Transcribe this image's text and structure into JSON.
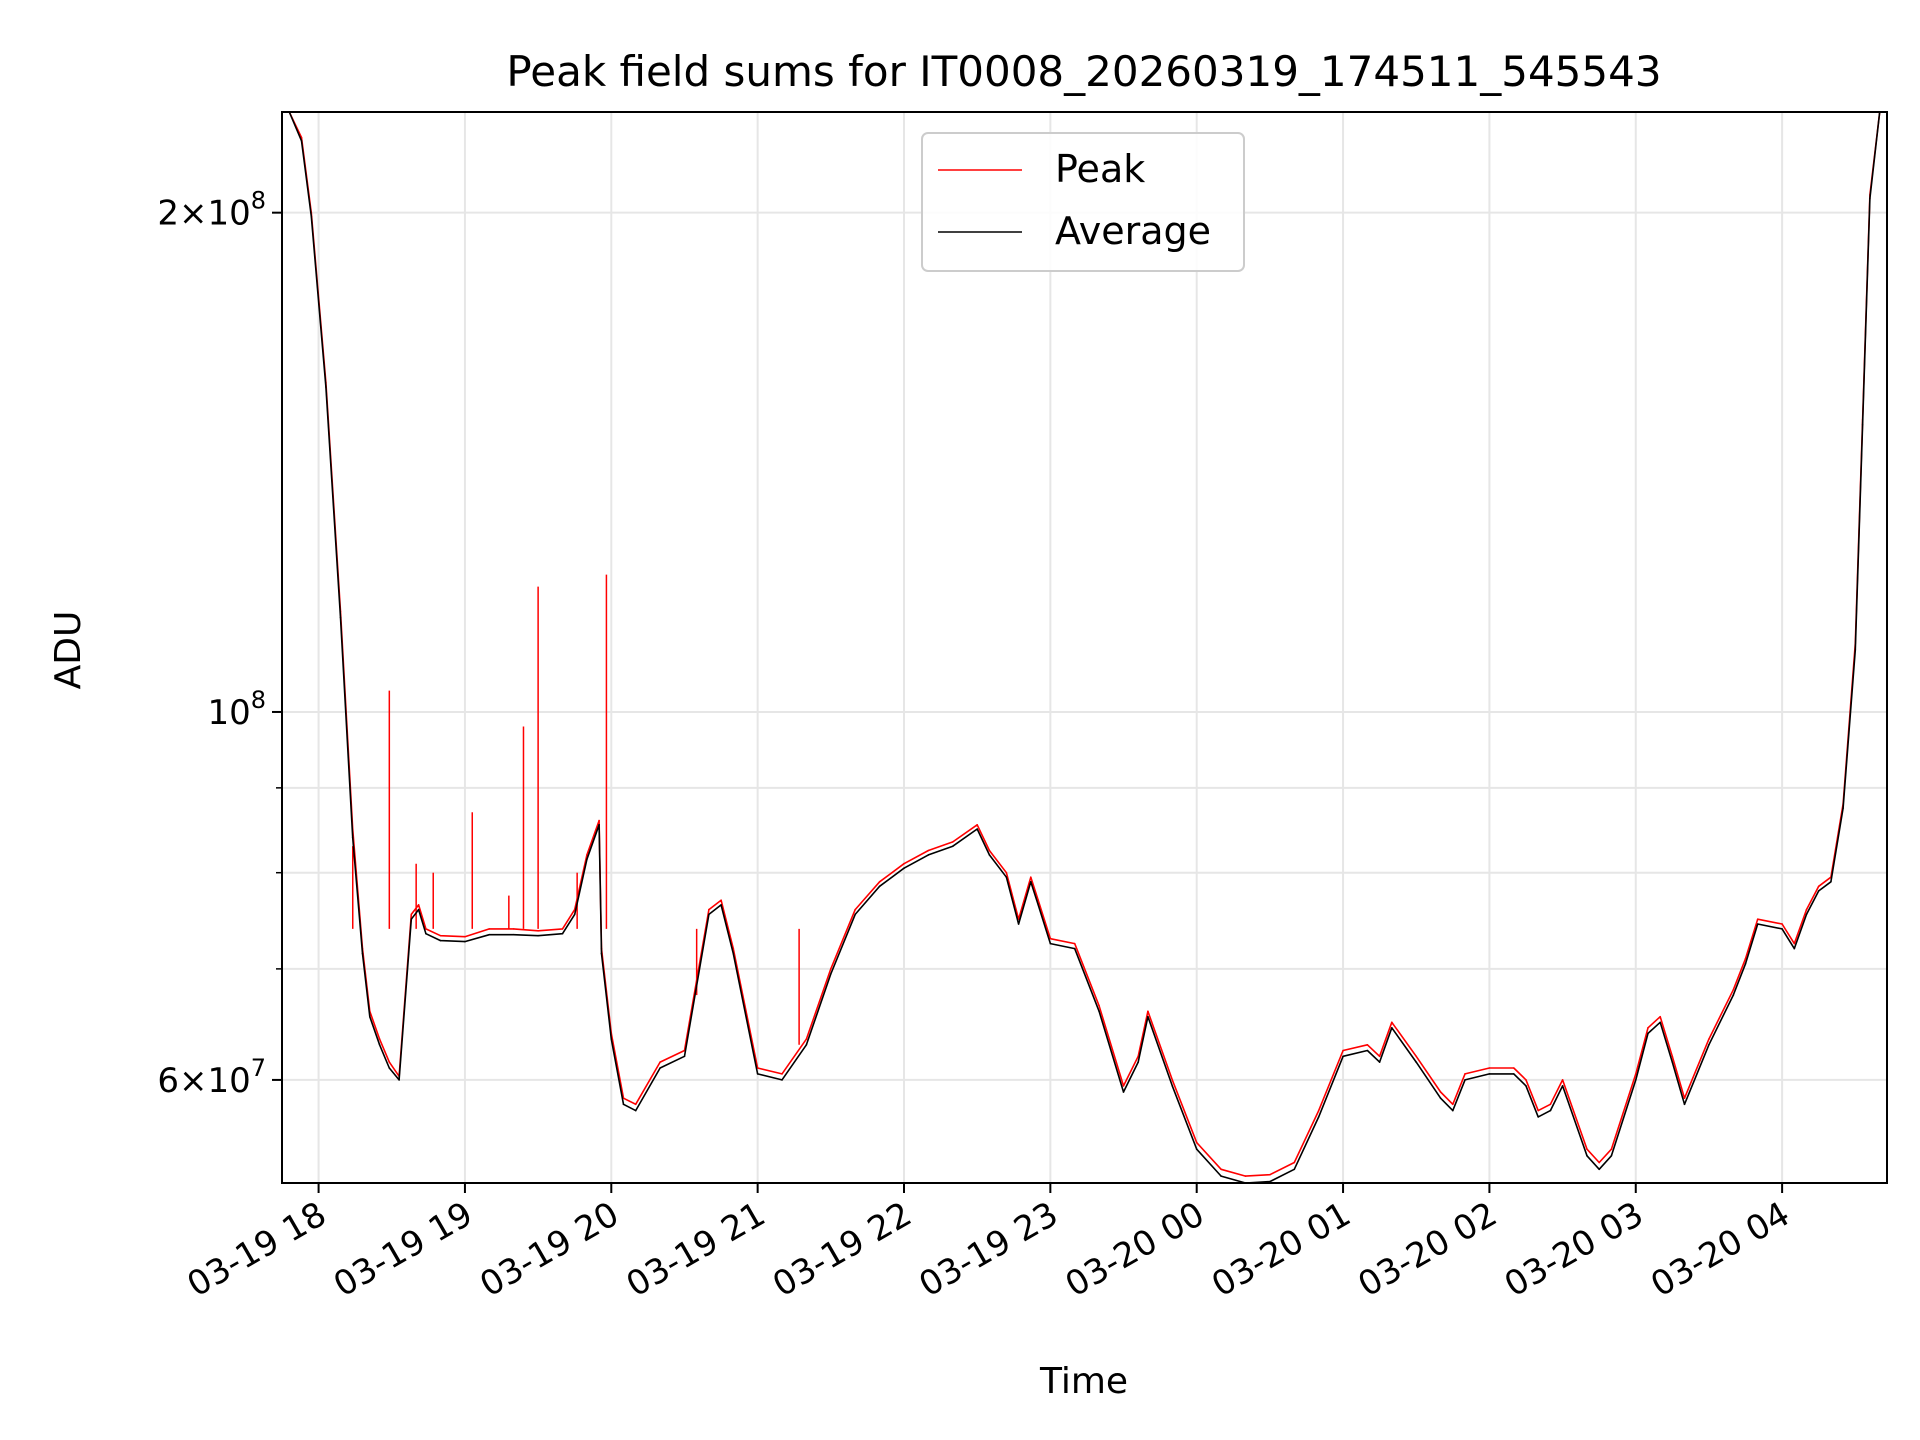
{
  "chart_data": {
    "type": "line",
    "title": "Peak field sums for IT0008_20260319_174511_545543",
    "xlabel": "Time",
    "ylabel": "ADU",
    "yscale": "log",
    "grid": true,
    "legend_position": "top-center",
    "xlim": [
      "03-19 17:45",
      "03-20 04:43"
    ],
    "ylim": [
      52000000,
      230000000
    ],
    "x_ticks": [
      "03-19 18",
      "03-19 19",
      "03-19 20",
      "03-19 21",
      "03-19 22",
      "03-19 23",
      "03-20 00",
      "03-20 01",
      "03-20 02",
      "03-20 03",
      "03-20 04"
    ],
    "y_ticks": [
      {
        "value": 200000000,
        "mant": "2",
        "exp": "8"
      },
      {
        "value": 100000000,
        "mant": "",
        "exp": "8"
      },
      {
        "value": 60000000,
        "mant": "6",
        "exp": "7"
      }
    ],
    "y_minor_ticks": [
      70000000,
      80000000,
      90000000
    ],
    "series": [
      {
        "name": "Peak",
        "color": "#ff0000",
        "x": [
          "03-19 17:45",
          "03-19 17:48",
          "03-19 17:53",
          "03-19 17:57",
          "03-19 18:03",
          "03-19 18:09",
          "03-19 18:14",
          "03-19 18:18",
          "03-19 18:21",
          "03-19 18:25",
          "03-19 18:29",
          "03-19 18:33",
          "03-19 18:38",
          "03-19 18:41",
          "03-19 18:44",
          "03-19 18:50",
          "03-19 19:00",
          "03-19 19:10",
          "03-19 19:20",
          "03-19 19:30",
          "03-19 19:40",
          "03-19 19:45",
          "03-19 19:50",
          "03-19 19:55",
          "03-19 19:56",
          "03-19 20:00",
          "03-19 20:05",
          "03-19 20:10",
          "03-19 20:20",
          "03-19 20:30",
          "03-19 20:40",
          "03-19 20:45",
          "03-19 20:50",
          "03-19 21:00",
          "03-19 21:10",
          "03-19 21:20",
          "03-19 21:30",
          "03-19 21:40",
          "03-19 21:50",
          "03-19 22:00",
          "03-19 22:10",
          "03-19 22:20",
          "03-19 22:30",
          "03-19 22:35",
          "03-19 22:42",
          "03-19 22:47",
          "03-19 22:52",
          "03-19 22:55",
          "03-19 23:00",
          "03-19 23:10",
          "03-19 23:20",
          "03-19 23:30",
          "03-19 23:36",
          "03-19 23:40",
          "03-19 23:50",
          "03-20 00:00",
          "03-20 00:10",
          "03-20 00:20",
          "03-20 00:30",
          "03-20 00:40",
          "03-20 00:50",
          "03-20 01:00",
          "03-20 01:10",
          "03-20 01:15",
          "03-20 01:20",
          "03-20 01:30",
          "03-20 01:40",
          "03-20 01:45",
          "03-20 01:50",
          "03-20 02:00",
          "03-20 02:10",
          "03-20 02:15",
          "03-20 02:20",
          "03-20 02:25",
          "03-20 02:30",
          "03-20 02:40",
          "03-20 02:45",
          "03-20 02:50",
          "03-20 03:00",
          "03-20 03:05",
          "03-20 03:10",
          "03-20 03:15",
          "03-20 03:20",
          "03-20 03:30",
          "03-20 03:40",
          "03-20 03:45",
          "03-20 03:50",
          "03-20 04:00",
          "03-20 04:05",
          "03-20 04:10",
          "03-20 04:15",
          "03-20 04:20",
          "03-20 04:25",
          "03-20 04:30",
          "03-20 04:33",
          "03-20 04:36",
          "03-20 04:40"
        ],
        "y": [
          230000000,
          230000000,
          222000000,
          200000000,
          158000000,
          115000000,
          85000000,
          72000000,
          66000000,
          63500000,
          61500000,
          60300000,
          75500000,
          76500000,
          74000000,
          73300000,
          73200000,
          74000000,
          74000000,
          73800000,
          74000000,
          76000000,
          82000000,
          86000000,
          72000000,
          64000000,
          58500000,
          58000000,
          61500000,
          62500000,
          76000000,
          77000000,
          72000000,
          61000000,
          60500000,
          63500000,
          70000000,
          76000000,
          79000000,
          81000000,
          82500000,
          83500000,
          85500000,
          82500000,
          80000000,
          75000000,
          79500000,
          77000000,
          73000000,
          72500000,
          66500000,
          59500000,
          62000000,
          66000000,
          60000000,
          55000000,
          53000000,
          52500000,
          52600000,
          53500000,
          57500000,
          62500000,
          63000000,
          62000000,
          65000000,
          62000000,
          59000000,
          58000000,
          60500000,
          61000000,
          61000000,
          60000000,
          57500000,
          58000000,
          60000000,
          54500000,
          53500000,
          54500000,
          60500000,
          64500000,
          65500000,
          62000000,
          58500000,
          63500000,
          68000000,
          71000000,
          75000000,
          74500000,
          72500000,
          76000000,
          78500000,
          79500000,
          88000000,
          110000000,
          150000000,
          205000000,
          230000000
        ]
      },
      {
        "name": "Average",
        "color": "#000000",
        "x": [
          "03-19 17:45",
          "03-19 17:48",
          "03-19 17:53",
          "03-19 17:57",
          "03-19 18:03",
          "03-19 18:09",
          "03-19 18:14",
          "03-19 18:18",
          "03-19 18:21",
          "03-19 18:25",
          "03-19 18:29",
          "03-19 18:33",
          "03-19 18:38",
          "03-19 18:41",
          "03-19 18:44",
          "03-19 18:50",
          "03-19 19:00",
          "03-19 19:10",
          "03-19 19:20",
          "03-19 19:30",
          "03-19 19:40",
          "03-19 19:45",
          "03-19 19:50",
          "03-19 19:55",
          "03-19 19:56",
          "03-19 20:00",
          "03-19 20:05",
          "03-19 20:10",
          "03-19 20:20",
          "03-19 20:30",
          "03-19 20:40",
          "03-19 20:45",
          "03-19 20:50",
          "03-19 21:00",
          "03-19 21:10",
          "03-19 21:20",
          "03-19 21:30",
          "03-19 21:40",
          "03-19 21:50",
          "03-19 22:00",
          "03-19 22:10",
          "03-19 22:20",
          "03-19 22:30",
          "03-19 22:35",
          "03-19 22:42",
          "03-19 22:47",
          "03-19 22:52",
          "03-19 22:55",
          "03-19 23:00",
          "03-19 23:10",
          "03-19 23:20",
          "03-19 23:30",
          "03-19 23:36",
          "03-19 23:40",
          "03-19 23:50",
          "03-20 00:00",
          "03-20 00:10",
          "03-20 00:20",
          "03-20 00:30",
          "03-20 00:40",
          "03-20 00:50",
          "03-20 01:00",
          "03-20 01:10",
          "03-20 01:15",
          "03-20 01:20",
          "03-20 01:30",
          "03-20 01:40",
          "03-20 01:45",
          "03-20 01:50",
          "03-20 02:00",
          "03-20 02:10",
          "03-20 02:15",
          "03-20 02:20",
          "03-20 02:25",
          "03-20 02:30",
          "03-20 02:40",
          "03-20 02:45",
          "03-20 02:50",
          "03-20 03:00",
          "03-20 03:05",
          "03-20 03:10",
          "03-20 03:15",
          "03-20 03:20",
          "03-20 03:30",
          "03-20 03:40",
          "03-20 03:45",
          "03-20 03:50",
          "03-20 04:00",
          "03-20 04:05",
          "03-20 04:10",
          "03-20 04:15",
          "03-20 04:20",
          "03-20 04:25",
          "03-20 04:30",
          "03-20 04:33",
          "03-20 04:36",
          "03-20 04:40"
        ],
        "y": [
          230000000,
          230000000,
          221000000,
          199000000,
          157000000,
          114000000,
          84000000,
          71500000,
          65500000,
          63000000,
          61000000,
          60000000,
          75000000,
          76000000,
          73500000,
          72800000,
          72700000,
          73400000,
          73400000,
          73300000,
          73500000,
          75500000,
          81500000,
          85500000,
          71500000,
          63500000,
          58000000,
          57500000,
          61000000,
          62000000,
          75500000,
          76500000,
          71500000,
          60500000,
          60000000,
          63000000,
          69500000,
          75500000,
          78500000,
          80500000,
          82000000,
          83000000,
          85000000,
          82000000,
          79500000,
          74500000,
          79000000,
          76500000,
          72500000,
          72000000,
          66000000,
          59000000,
          61500000,
          65500000,
          59500000,
          54500000,
          52500000,
          52000000,
          52100000,
          53000000,
          57000000,
          62000000,
          62500000,
          61500000,
          64500000,
          61500000,
          58500000,
          57500000,
          60000000,
          60500000,
          60500000,
          59500000,
          57000000,
          57500000,
          59500000,
          54000000,
          53000000,
          54000000,
          60000000,
          64000000,
          65000000,
          61500000,
          58000000,
          63000000,
          67500000,
          70500000,
          74500000,
          74000000,
          72000000,
          75500000,
          78000000,
          79000000,
          87500000,
          109000000,
          149000000,
          204000000,
          230000000
        ]
      }
    ],
    "spikes": [
      {
        "x": "03-19 18:14",
        "y": 83000000
      },
      {
        "x": "03-19 18:29",
        "y": 103000000
      },
      {
        "x": "03-19 18:40",
        "y": 81000000
      },
      {
        "x": "03-19 18:47",
        "y": 80000000
      },
      {
        "x": "03-19 19:03",
        "y": 87000000
      },
      {
        "x": "03-19 19:18",
        "y": 77500000
      },
      {
        "x": "03-19 19:24",
        "y": 98000000
      },
      {
        "x": "03-19 19:30",
        "y": 119000000
      },
      {
        "x": "03-19 19:46",
        "y": 80000000
      },
      {
        "x": "03-19 19:58",
        "y": 121000000
      },
      {
        "x": "03-19 20:35",
        "y": 67500000
      },
      {
        "x": "03-19 21:17",
        "y": 63000000
      }
    ]
  }
}
